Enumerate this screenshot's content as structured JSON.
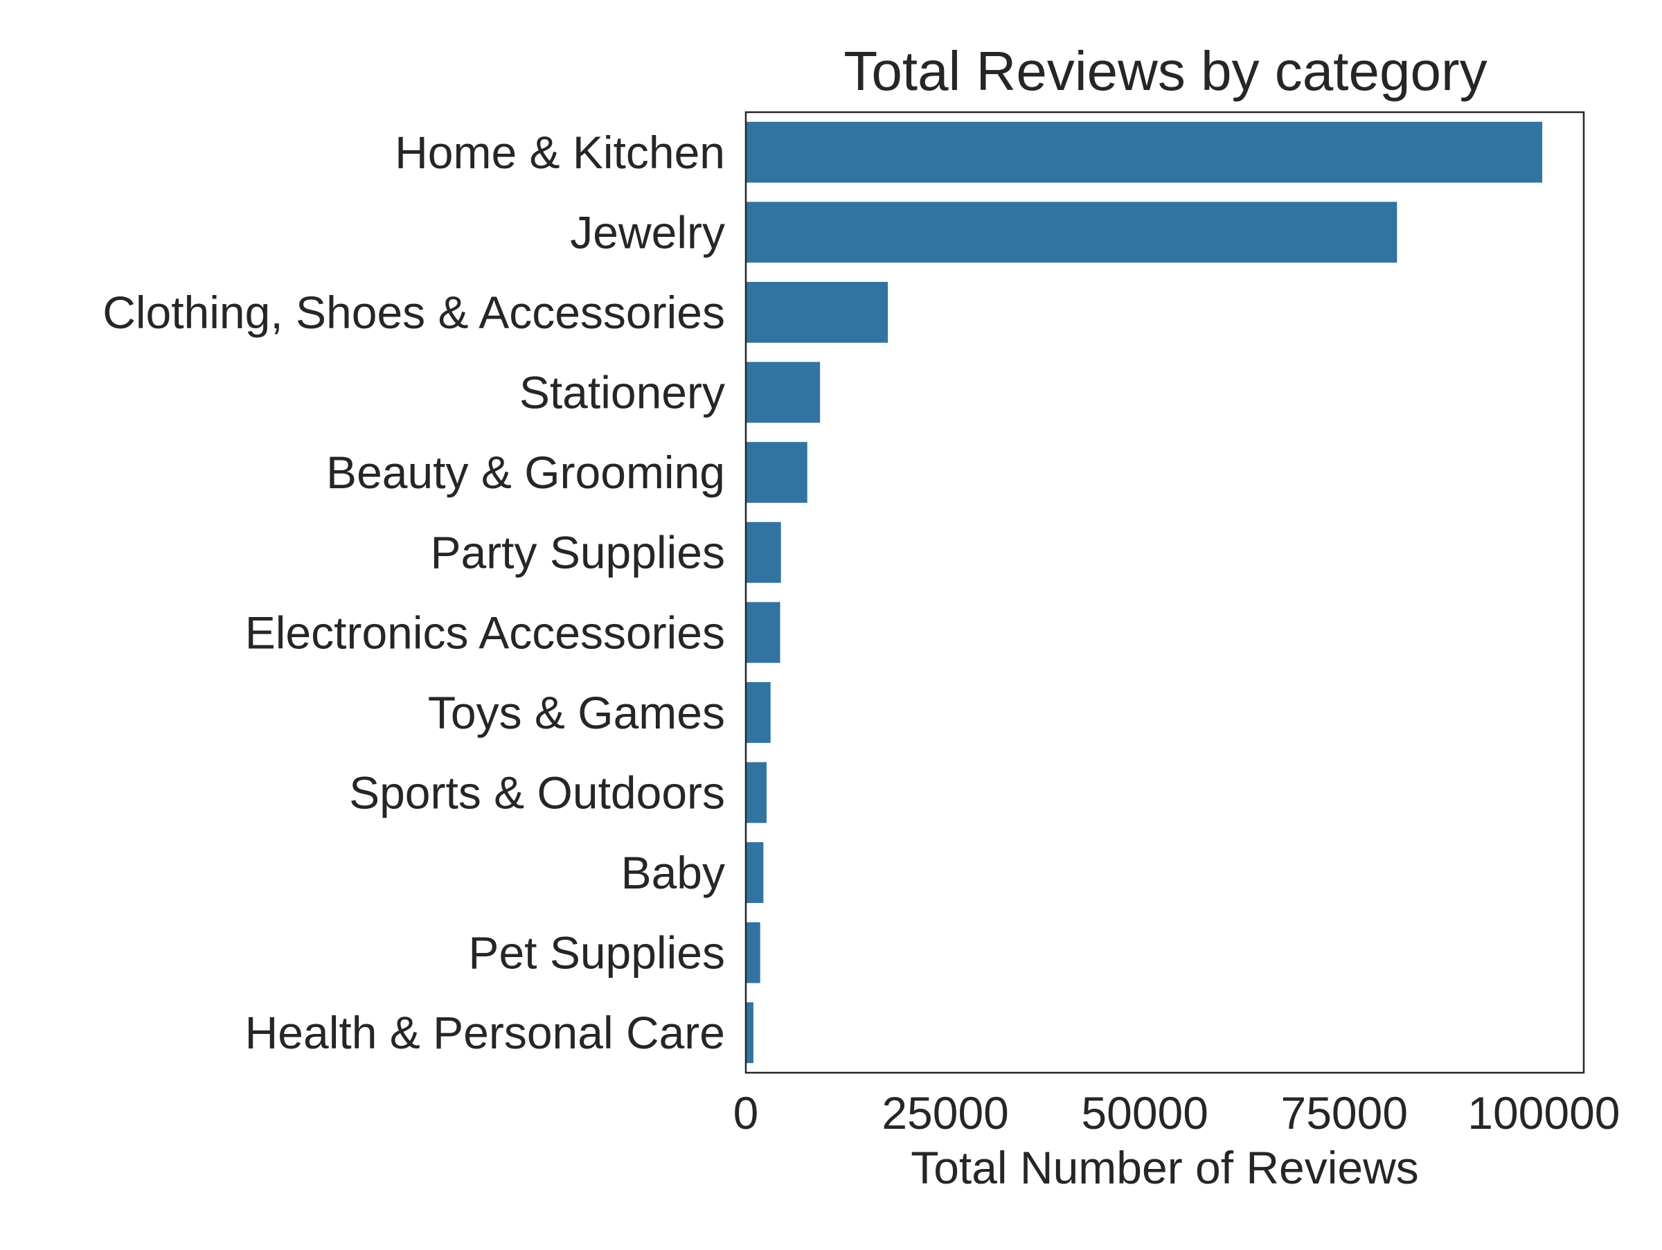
{
  "chart_data": {
    "type": "bar",
    "orientation": "horizontal",
    "title": "Total Reviews by category",
    "xlabel": "Total Number of Reviews",
    "ylabel": "",
    "xlim": [
      0,
      105000
    ],
    "xticks": [
      0,
      25000,
      50000,
      75000,
      100000
    ],
    "xtick_labels": [
      "0",
      "25000",
      "50000",
      "75000",
      "100000"
    ],
    "grid": false,
    "bar_color": "#3274a1",
    "categories": [
      "Home & Kitchen",
      "Jewelry",
      "Clothing, Shoes & Accessories",
      "Stationery",
      "Beauty & Grooming",
      "Party Supplies",
      "Electronics Accessories",
      "Toys & Games",
      "Sports & Outdoors",
      "Baby",
      "Pet Supplies",
      "Health & Personal Care"
    ],
    "values": [
      99800,
      81600,
      17800,
      9300,
      7700,
      4400,
      4300,
      3100,
      2600,
      2200,
      1800,
      950
    ]
  }
}
